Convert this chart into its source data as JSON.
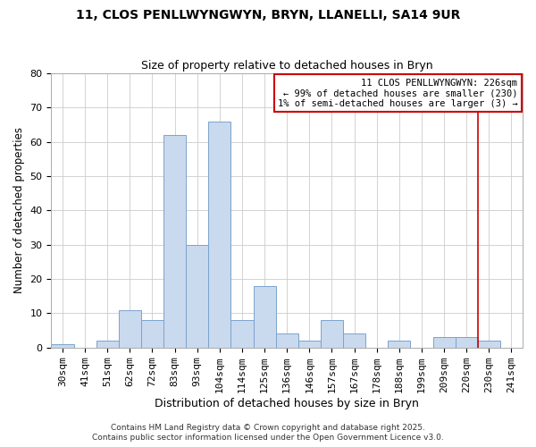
{
  "title1": "11, CLOS PENLLWYNGWYN, BRYN, LLANELLI, SA14 9UR",
  "title2": "Size of property relative to detached houses in Bryn",
  "xlabel": "Distribution of detached houses by size in Bryn",
  "ylabel": "Number of detached properties",
  "categories": [
    "30sqm",
    "41sqm",
    "51sqm",
    "62sqm",
    "72sqm",
    "83sqm",
    "93sqm",
    "104sqm",
    "114sqm",
    "125sqm",
    "136sqm",
    "146sqm",
    "157sqm",
    "167sqm",
    "178sqm",
    "188sqm",
    "199sqm",
    "209sqm",
    "220sqm",
    "230sqm",
    "241sqm"
  ],
  "values": [
    1,
    0,
    2,
    11,
    8,
    62,
    30,
    66,
    8,
    18,
    4,
    2,
    8,
    4,
    0,
    2,
    0,
    3,
    3,
    2,
    0
  ],
  "bar_color": "#c9d9ee",
  "bar_edge_color": "#7ba3cc",
  "vline_pos": 18.5,
  "vline_color": "#cc0000",
  "annotation_text": "11 CLOS PENLLWYNGWYN: 226sqm\n← 99% of detached houses are smaller (230)\n1% of semi-detached houses are larger (3) →",
  "annotation_box_color": "white",
  "annotation_box_edge_color": "#cc0000",
  "ylim": [
    0,
    80
  ],
  "yticks": [
    0,
    10,
    20,
    30,
    40,
    50,
    60,
    70,
    80
  ],
  "footer1": "Contains HM Land Registry data © Crown copyright and database right 2025.",
  "footer2": "Contains public sector information licensed under the Open Government Licence v3.0.",
  "background_color": "white",
  "grid_color": "#cccccc",
  "title1_fontsize": 10,
  "title2_fontsize": 9,
  "xlabel_fontsize": 9,
  "ylabel_fontsize": 8.5,
  "tick_fontsize": 8,
  "annotation_fontsize": 7.5,
  "footer_fontsize": 6.5
}
